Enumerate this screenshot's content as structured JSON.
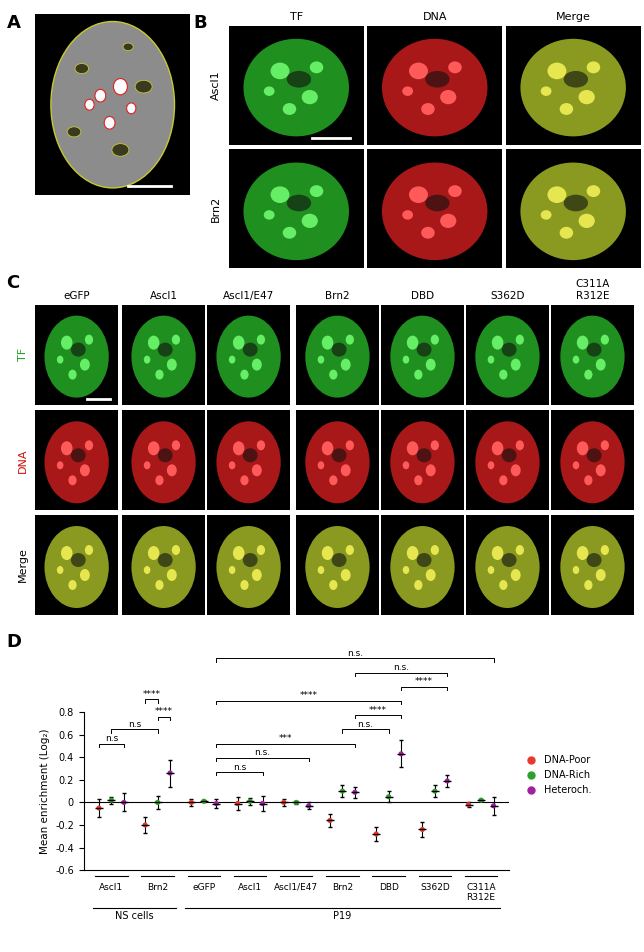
{
  "panel_labels": [
    "A",
    "B",
    "C",
    "D"
  ],
  "panel_B": {
    "columns": [
      "TF",
      "DNA",
      "Merge"
    ],
    "rows": [
      "Ascl1",
      "Brn2"
    ]
  },
  "panel_C": {
    "columns": [
      "eGFP",
      "Ascl1",
      "Ascl1/E47",
      "Brn2",
      "DBD",
      "S362D",
      "C311A\nR312E"
    ],
    "rows": [
      "TF",
      "DNA",
      "Merge"
    ]
  },
  "chart_data": {
    "type": "scatter",
    "y_label": "Mean enrichment (Log₂)",
    "categories": [
      "Ascl1",
      "Brn2",
      "eGFP",
      "Ascl1",
      "Ascl1/E47",
      "Brn2",
      "DBD",
      "S362D",
      "C311A\nR312E"
    ],
    "category_groups": [
      {
        "label": "NS cells",
        "categories": [
          0,
          1
        ]
      },
      {
        "label": "P19",
        "categories": [
          2,
          3,
          4,
          5,
          6,
          7,
          8
        ]
      }
    ],
    "series": [
      {
        "name": "DNA-Poor",
        "color": "#e8382e",
        "values": [
          -0.05,
          -0.2,
          0.0,
          -0.01,
          0.0,
          -0.16,
          -0.28,
          -0.24,
          -0.02
        ],
        "errors": [
          0.08,
          0.07,
          0.03,
          0.06,
          0.03,
          0.06,
          0.06,
          0.07,
          0.02
        ]
      },
      {
        "name": "DNA-Rich",
        "color": "#2ca02c",
        "values": [
          0.02,
          0.0,
          0.01,
          0.01,
          0.0,
          0.1,
          0.05,
          0.1,
          0.02
        ],
        "errors": [
          0.03,
          0.06,
          0.01,
          0.03,
          0.01,
          0.05,
          0.05,
          0.05,
          0.01
        ]
      },
      {
        "name": "Heteroch.",
        "color": "#a020a0",
        "values": [
          0.0,
          0.26,
          -0.01,
          -0.01,
          -0.03,
          0.09,
          0.43,
          0.19,
          -0.03
        ],
        "errors": [
          0.08,
          0.12,
          0.04,
          0.07,
          0.03,
          0.05,
          0.12,
          0.05,
          0.08
        ]
      }
    ],
    "ylim": [
      -0.6,
      0.8
    ],
    "yticks": [
      -0.6,
      -0.4,
      -0.2,
      0,
      0.2,
      0.4,
      0.6,
      0.8
    ],
    "legend": "right",
    "comparisons": [
      {
        "from": [
          0,
          0
        ],
        "to": [
          0,
          2
        ],
        "label": "n.s"
      },
      {
        "from": [
          0,
          1
        ],
        "to": [
          1,
          1
        ],
        "label": "n.s"
      },
      {
        "from": [
          1,
          1
        ],
        "to": [
          1,
          2
        ],
        "label": "****"
      },
      {
        "from": [
          1,
          0
        ],
        "to": [
          1,
          1
        ],
        "label": "****"
      },
      {
        "from": [
          2,
          2
        ],
        "to": [
          3,
          2
        ],
        "label": "n.s"
      },
      {
        "from": [
          2,
          2
        ],
        "to": [
          4,
          2
        ],
        "label": "n.s."
      },
      {
        "from": [
          2,
          2
        ],
        "to": [
          5,
          2
        ],
        "label": "***"
      },
      {
        "from": [
          5,
          1
        ],
        "to": [
          6,
          1
        ],
        "label": "n.s."
      },
      {
        "from": [
          5,
          2
        ],
        "to": [
          6,
          2
        ],
        "label": "****"
      },
      {
        "from": [
          2,
          2
        ],
        "to": [
          6,
          2
        ],
        "label": "****"
      },
      {
        "from": [
          6,
          2
        ],
        "to": [
          7,
          2
        ],
        "label": "****"
      },
      {
        "from": [
          5,
          2
        ],
        "to": [
          7,
          2
        ],
        "label": "n.s."
      },
      {
        "from": [
          2,
          2
        ],
        "to": [
          8,
          2
        ],
        "label": "n.s."
      }
    ]
  }
}
